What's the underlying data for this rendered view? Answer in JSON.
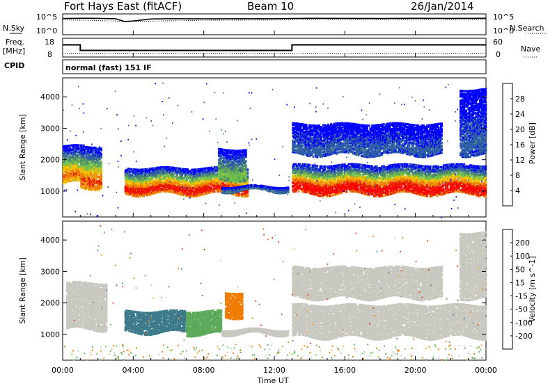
{
  "header": {
    "site": "Fort Hays East (fitACF)",
    "beam": "Beam 10",
    "date": "26/Jan/2014"
  },
  "noise_panel": {
    "left_label": "N.Sky",
    "left_ticks": [
      "10^5",
      "10^0"
    ],
    "right_ticks": [
      "10^5",
      "10^0"
    ],
    "right_label": "N.Search"
  },
  "freq_panel": {
    "label_line1": "Freq.",
    "label_line2": "[MHz]",
    "left_ticks": [
      "18",
      "8"
    ],
    "right_ticks": [
      "60",
      "0"
    ],
    "right_label": "Nave",
    "cpid_label": "CPID"
  },
  "cpid_text": "normal (fast) 151 IF",
  "power_panel": {
    "ylabel": "Slant Range [km]",
    "yticks": [
      "4000",
      "3000",
      "2000",
      "1000"
    ],
    "colorbar_label": "Power [dB]",
    "colorbar_ticks": [
      "28",
      "24",
      "20",
      "16",
      "12",
      "8",
      "4"
    ]
  },
  "velocity_panel": {
    "ylabel": "Slant Range [km]",
    "yticks": [
      "4000",
      "3000",
      "2000",
      "1000"
    ],
    "colorbar_label": "Velocity [m s^-1]",
    "colorbar_ticks": [
      "200",
      "100",
      "50",
      "15",
      "-15",
      "-50",
      "-100",
      "-200"
    ]
  },
  "xaxis": {
    "ticks": [
      "00:00",
      "04:00",
      "08:00",
      "12:00",
      "16:00",
      "20:00",
      "00:00"
    ],
    "label": "Time UT"
  },
  "colors": {
    "power_scale": [
      "#0000ff",
      "#2a5aa8",
      "#4f8a6c",
      "#6fc04a",
      "#f0c000",
      "#f08000",
      "#e82000",
      "#ff0000"
    ],
    "velocity_scale": [
      "#2a3aa0",
      "#3d7a8a",
      "#5aaa5a",
      "#60d040",
      "#c8c8c0",
      "#f0b020",
      "#f07a00",
      "#f03000",
      "#ff0000"
    ],
    "gray_scatter": "#c8c8c0"
  },
  "chart_data": [
    {
      "type": "line",
      "title": "N.Sky / N.Search",
      "x_range": [
        0,
        24
      ],
      "y_scale": "log",
      "ylim": [
        1,
        100000
      ],
      "series": [
        {
          "name": "N.Sky",
          "x": [
            0,
            1,
            2,
            3,
            3.5,
            4,
            5,
            6,
            8,
            10,
            12,
            13,
            14,
            16,
            18,
            20,
            22,
            24
          ],
          "y": [
            8000,
            9000,
            8500,
            7000,
            1500,
            2000,
            6000,
            7000,
            6500,
            7000,
            7000,
            8000,
            9000,
            8500,
            8000,
            9000,
            8500,
            9000
          ]
        },
        {
          "name": "N.Search",
          "x": [
            0,
            4,
            8,
            12,
            16,
            20,
            24
          ],
          "y": [
            4000,
            1500,
            3000,
            3500,
            4500,
            4000,
            4500
          ]
        }
      ]
    },
    {
      "type": "line",
      "title": "Freq. / Nave",
      "x_range": [
        0,
        24
      ],
      "ylim": [
        8,
        18
      ],
      "series": [
        {
          "name": "Freq.",
          "x": [
            0,
            1,
            1,
            13,
            13,
            24
          ],
          "y": [
            14.5,
            14.5,
            11.5,
            11.5,
            14.5,
            14.5
          ]
        },
        {
          "name": "Nave",
          "x": [
            0,
            4,
            8,
            12,
            16,
            20,
            24
          ],
          "y": [
            10,
            10,
            10,
            10,
            10,
            10,
            10
          ]
        }
      ]
    },
    {
      "type": "heatmap",
      "title": "Power [dB]",
      "xlabel": "Time UT",
      "ylabel": "Slant Range [km]",
      "x_range": [
        0,
        24
      ],
      "ylim": [
        180,
        4600
      ],
      "zlim": [
        0,
        30
      ],
      "regions": [
        {
          "t_start": 0.0,
          "t_end": 1.2,
          "range_low": 1300,
          "range_high": 2500,
          "power_peak": 22
        },
        {
          "t_start": 1.0,
          "t_end": 2.2,
          "range_low": 1150,
          "range_high": 2500,
          "power_peak": 24
        },
        {
          "t_start": 3.5,
          "t_end": 10.5,
          "range_low": 950,
          "range_high": 1800,
          "power_peak": 27
        },
        {
          "t_start": 8.8,
          "t_end": 10.4,
          "range_low": 1400,
          "range_high": 2400,
          "power_peak": 14
        },
        {
          "t_start": 9.0,
          "t_end": 12.8,
          "range_low": 1050,
          "range_high": 1200,
          "power_peak": 8
        },
        {
          "t_start": 13.0,
          "t_end": 24.0,
          "range_low": 950,
          "range_high": 1900,
          "power_peak": 29
        },
        {
          "t_start": 13.0,
          "t_end": 21.5,
          "range_low": 2200,
          "range_high": 3200,
          "power_peak": 6
        },
        {
          "t_start": 22.5,
          "t_end": 24.0,
          "range_low": 2200,
          "range_high": 4300,
          "power_peak": 6
        }
      ]
    },
    {
      "type": "heatmap",
      "title": "Velocity [m s^-1]",
      "xlabel": "Time UT",
      "ylabel": "Slant Range [km]",
      "x_range": [
        0,
        24
      ],
      "ylim": [
        180,
        4600
      ],
      "zlim": [
        -200,
        200
      ],
      "regions": [
        {
          "t_start": 0.2,
          "t_end": 2.5,
          "range_low": 1200,
          "range_high": 2700,
          "velocity": 0
        },
        {
          "t_start": 3.5,
          "t_end": 7.0,
          "range_low": 1100,
          "range_high": 1800,
          "velocity": 120
        },
        {
          "t_start": 7.0,
          "t_end": 9.0,
          "range_low": 1050,
          "range_high": 1800,
          "velocity": 60
        },
        {
          "t_start": 9.2,
          "t_end": 10.2,
          "range_low": 1600,
          "range_high": 2400,
          "velocity": -40
        },
        {
          "t_start": 9.0,
          "t_end": 12.8,
          "range_low": 1050,
          "range_high": 1200,
          "velocity": 0
        },
        {
          "t_start": 13.0,
          "t_end": 24.0,
          "range_low": 950,
          "range_high": 2000,
          "velocity": 0
        },
        {
          "t_start": 13.0,
          "t_end": 21.5,
          "range_low": 2200,
          "range_high": 3200,
          "velocity": 0
        },
        {
          "t_start": 22.5,
          "t_end": 24.0,
          "range_low": 2200,
          "range_high": 4300,
          "velocity": 0
        }
      ]
    }
  ]
}
